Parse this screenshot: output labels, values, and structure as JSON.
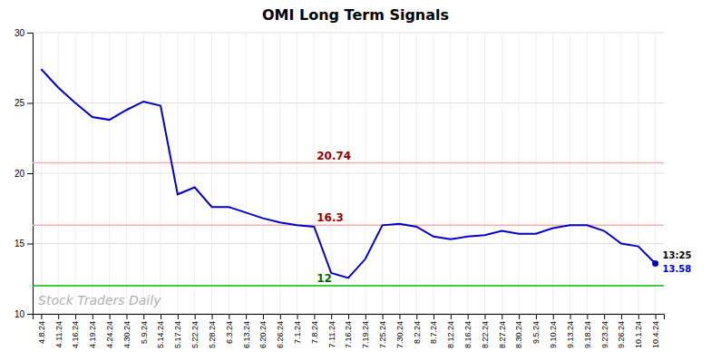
{
  "chart_data": {
    "type": "line",
    "title": "OMI Long Term Signals",
    "categories": [
      "4.8.24",
      "4.11.24",
      "4.16.24",
      "4.19.24",
      "4.24.24",
      "4.30.24",
      "5.9.24",
      "5.14.24",
      "5.17.24",
      "5.22.24",
      "5.28.24",
      "6.3.24",
      "6.13.24",
      "6.20.24",
      "6.26.24",
      "7.1.24",
      "7.8.24",
      "7.11.24",
      "7.16.24",
      "7.19.24",
      "7.25.24",
      "7.30.24",
      "8.2.24",
      "8.7.24",
      "8.12.24",
      "8.16.24",
      "8.22.24",
      "8.27.24",
      "8.30.24",
      "9.5.24",
      "9.10.24",
      "9.13.24",
      "9.18.24",
      "9.23.24",
      "9.26.24",
      "10.1.24",
      "10.4.24"
    ],
    "values": [
      27.4,
      26.1,
      25.0,
      24.0,
      23.8,
      24.5,
      25.1,
      24.8,
      18.5,
      19.0,
      17.6,
      17.6,
      17.2,
      16.8,
      16.5,
      16.3,
      16.2,
      12.9,
      12.55,
      13.9,
      16.3,
      16.4,
      16.2,
      15.5,
      15.3,
      15.5,
      15.6,
      15.9,
      15.7,
      15.7,
      16.1,
      16.3,
      16.3,
      15.9,
      15.0,
      14.8,
      13.58
    ],
    "color": "#0000cc",
    "ylim": [
      10,
      30
    ],
    "yticks": [
      10,
      15,
      20,
      25,
      30
    ],
    "grid": true,
    "hlines": [
      {
        "value": 20.74,
        "color": "#ffaaaa",
        "label": "20.74",
        "label_color": "#990000"
      },
      {
        "value": 16.3,
        "color": "#ffaaaa",
        "label": "16.3",
        "label_color": "#990000"
      },
      {
        "value": 12,
        "color": "#00bb00",
        "label": "12",
        "label_color": "#006600"
      }
    ],
    "last_time": "13:25",
    "last_value_label": "13.58",
    "watermark": {
      "text": "Stock Traders Daily",
      "color": "#b0b0b0"
    }
  }
}
